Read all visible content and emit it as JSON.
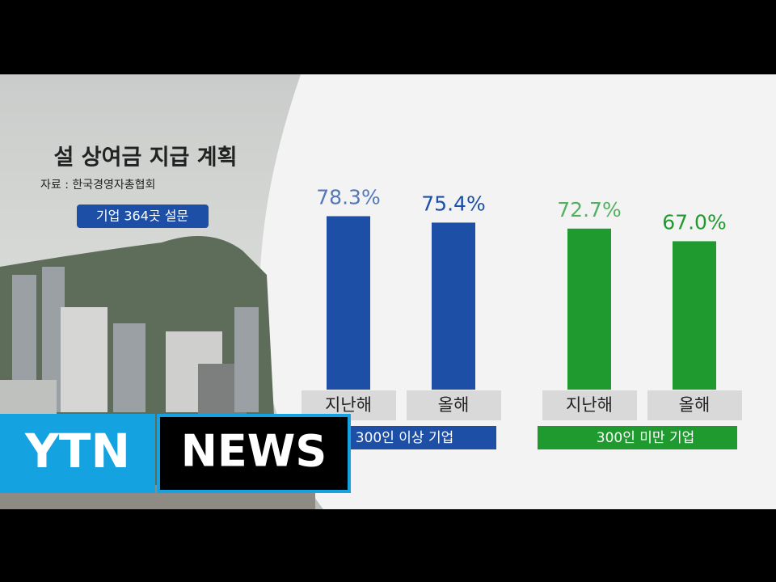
{
  "chart_data": {
    "type": "bar",
    "title": "설 상여금 지급 계획",
    "subtitle": "자료 : 한국경영자총협회",
    "annotation": "기업 364곳 설문",
    "categories": [
      "지난해",
      "올해"
    ],
    "series": [
      {
        "name": "300인 이상 기업",
        "color": "#1d4fa6",
        "values": [
          78.3,
          75.4
        ],
        "value_labels": [
          "78.3%",
          "75.4%"
        ]
      },
      {
        "name": "300인 미만 기업",
        "color": "#1f9a2f",
        "values": [
          72.7,
          67.0
        ],
        "value_labels": [
          "72.7%",
          "67.0%"
        ]
      }
    ]
  },
  "logo": {
    "left": "YTN",
    "right": "NEWS"
  }
}
